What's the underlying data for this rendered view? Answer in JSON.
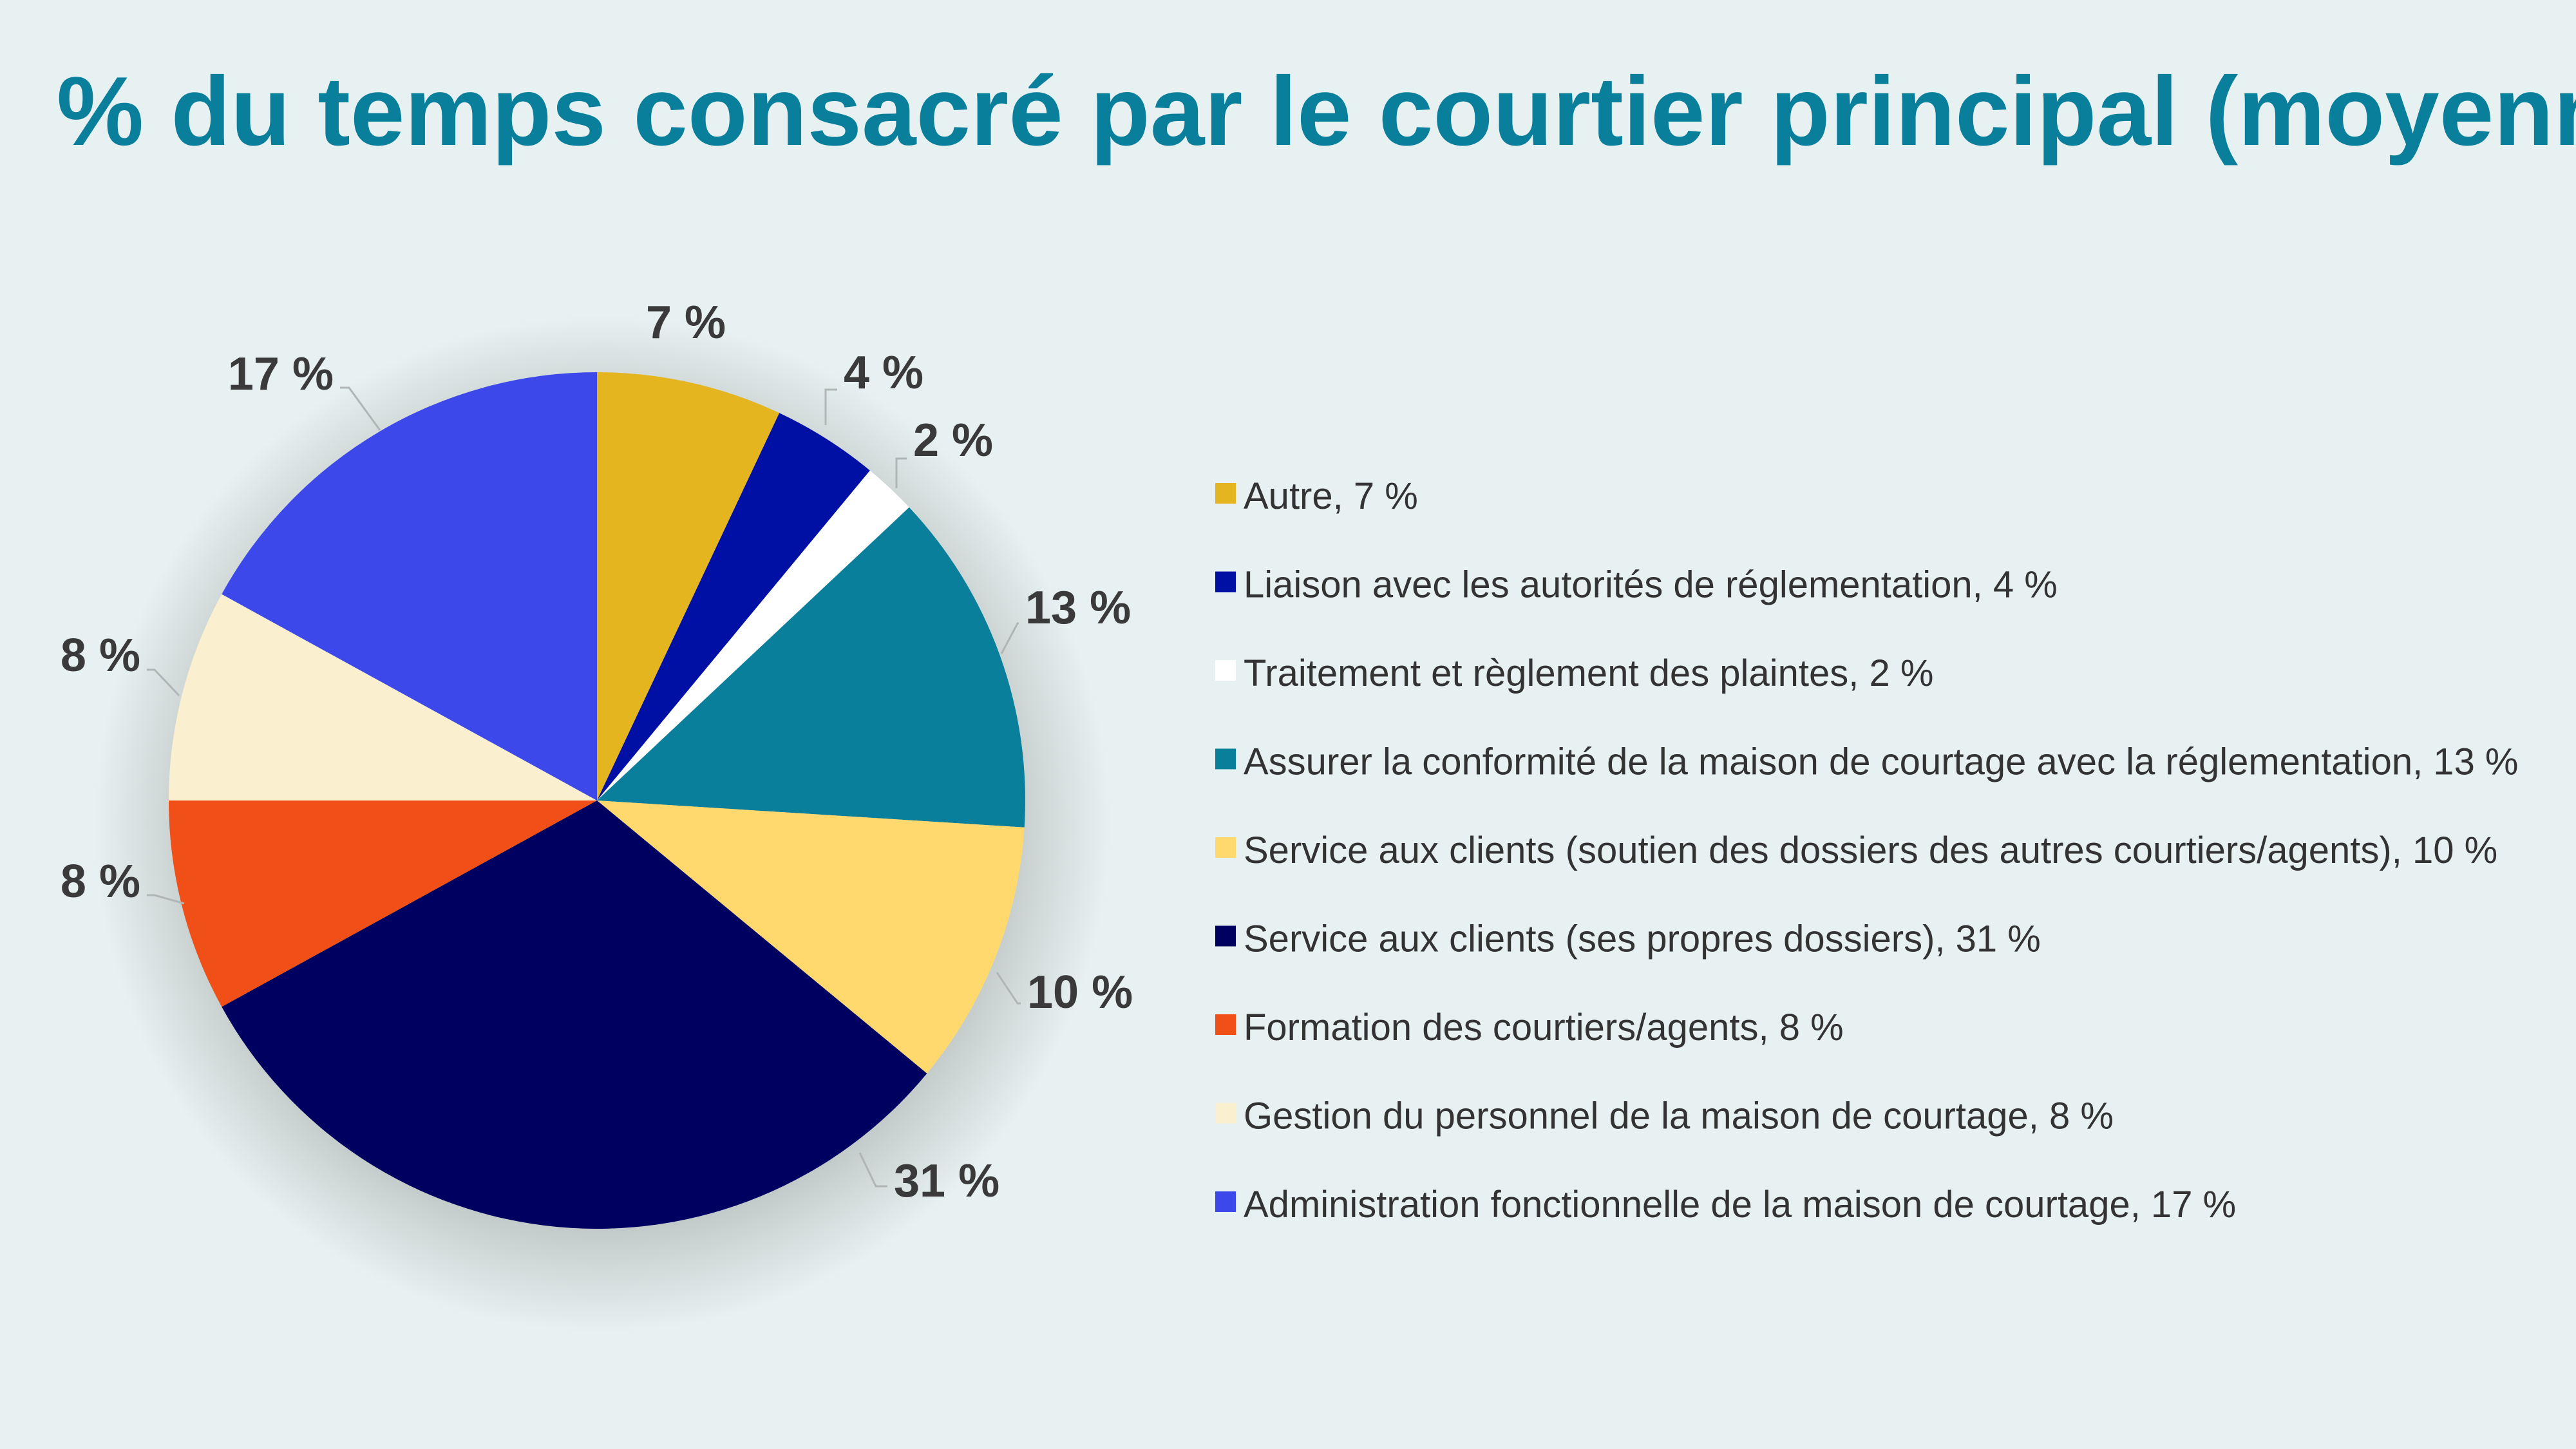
{
  "colors": {
    "background": "#e8f1f1",
    "title": "#0a7f9c"
  },
  "chart_data": {
    "type": "pie",
    "title": "% du temps consacré par le courtier principal (moyenne)",
    "legend_position": "right",
    "slices": [
      {
        "name": "Autre",
        "value": 7,
        "label": "7 %",
        "legend": "Autre, 7 %",
        "color": "#e5b520"
      },
      {
        "name": "Liaison avec les autorités de réglementation",
        "value": 4,
        "label": "4 %",
        "legend": "Liaison avec les autorités de réglementation, 4 %",
        "color": "#0010a5"
      },
      {
        "name": "Traitement et règlement des plaintes",
        "value": 2,
        "label": "2 %",
        "legend": "Traitement et règlement des plaintes, 2 %",
        "color": "#ffffff"
      },
      {
        "name": "Assurer la conformité de la maison de courtage avec la réglementation",
        "value": 13,
        "label": "13 %",
        "legend": "Assurer la conformité de la maison de courtage avec la réglementation, 13 %",
        "color": "#0a7f9c"
      },
      {
        "name": "Service aux clients (soutien des dossiers des autres courtiers/agents)",
        "value": 10,
        "label": "10 %",
        "legend": "Service aux clients (soutien des dossiers des autres courtiers/agents), 10 %",
        "color": "#ffd96e"
      },
      {
        "name": "Service aux clients (ses propres dossiers)",
        "value": 31,
        "label": "31 %",
        "legend": "Service aux clients (ses propres dossiers), 31 %",
        "color": "#000060"
      },
      {
        "name": "Formation des courtiers/agents",
        "value": 8,
        "label": "8 %",
        "legend": "Formation des courtiers/agents, 8 %",
        "color": "#f05018"
      },
      {
        "name": "Gestion du personnel de la maison de courtage",
        "value": 8,
        "label": "8 %",
        "legend": "Gestion du personnel de la maison de courtage, 8 %",
        "color": "#faf0d0"
      },
      {
        "name": "Administration fonctionnelle de la maison de courtage",
        "value": 17,
        "label": "17 %",
        "legend": "Administration fonctionnelle de la maison de courtage, 17 %",
        "color": "#3d48ea"
      }
    ]
  }
}
